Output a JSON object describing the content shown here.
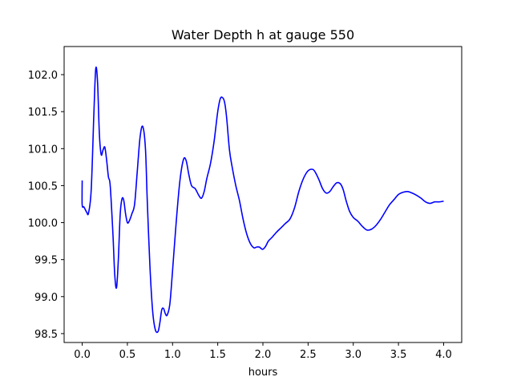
{
  "chart_data": {
    "type": "line",
    "title": "Water Depth h at gauge 550",
    "xlabel": "hours",
    "ylabel": "",
    "xlim": [
      -0.2,
      4.2
    ],
    "ylim": [
      98.38,
      102.38
    ],
    "xticks": [
      0.0,
      0.5,
      1.0,
      1.5,
      2.0,
      2.5,
      3.0,
      3.5,
      4.0
    ],
    "xtick_labels": [
      "0.0",
      "0.5",
      "1.0",
      "1.5",
      "2.0",
      "2.5",
      "3.0",
      "3.5",
      "4.0"
    ],
    "yticks": [
      98.5,
      99.0,
      99.5,
      100.0,
      100.5,
      101.0,
      101.5,
      102.0
    ],
    "ytick_labels": [
      "98.5",
      "99.0",
      "99.5",
      "100.0",
      "100.5",
      "101.0",
      "101.5",
      "102.0"
    ],
    "grid": false,
    "legend": "none",
    "series": [
      {
        "color": "#0000ff",
        "x": [
          0.0,
          0.0,
          0.02,
          0.05,
          0.07,
          0.1,
          0.13,
          0.15,
          0.17,
          0.19,
          0.21,
          0.23,
          0.25,
          0.27,
          0.29,
          0.31,
          0.34,
          0.36,
          0.38,
          0.4,
          0.42,
          0.44,
          0.46,
          0.48,
          0.5,
          0.52,
          0.55,
          0.58,
          0.61,
          0.64,
          0.67,
          0.7,
          0.72,
          0.75,
          0.78,
          0.81,
          0.84,
          0.86,
          0.88,
          0.9,
          0.92,
          0.94,
          0.97,
          1.0,
          1.04,
          1.08,
          1.12,
          1.15,
          1.18,
          1.21,
          1.25,
          1.29,
          1.32,
          1.35,
          1.38,
          1.42,
          1.46,
          1.5,
          1.53,
          1.56,
          1.58,
          1.6,
          1.63,
          1.66,
          1.7,
          1.74,
          1.78,
          1.82,
          1.86,
          1.9,
          1.93,
          1.96,
          1.98,
          2.0,
          2.03,
          2.06,
          2.1,
          2.15,
          2.2,
          2.25,
          2.3,
          2.35,
          2.4,
          2.45,
          2.5,
          2.55,
          2.58,
          2.62,
          2.66,
          2.7,
          2.74,
          2.78,
          2.82,
          2.86,
          2.89,
          2.92,
          2.96,
          3.0,
          3.05,
          3.1,
          3.15,
          3.2,
          3.25,
          3.3,
          3.35,
          3.4,
          3.45,
          3.5,
          3.55,
          3.6,
          3.65,
          3.7,
          3.75,
          3.8,
          3.85,
          3.9,
          3.95,
          4.0
        ],
        "y": [
          100.57,
          100.24,
          100.21,
          100.14,
          100.13,
          100.45,
          101.5,
          102.08,
          101.9,
          101.2,
          100.92,
          100.98,
          101.02,
          100.85,
          100.62,
          100.5,
          99.85,
          99.3,
          99.12,
          99.5,
          100.1,
          100.32,
          100.3,
          100.12,
          100.0,
          100.02,
          100.12,
          100.25,
          100.7,
          101.15,
          101.3,
          101.0,
          100.3,
          99.4,
          98.8,
          98.55,
          98.53,
          98.65,
          98.82,
          98.84,
          98.77,
          98.75,
          98.9,
          99.35,
          100.0,
          100.55,
          100.85,
          100.84,
          100.65,
          100.5,
          100.46,
          100.37,
          100.33,
          100.42,
          100.6,
          100.8,
          101.1,
          101.5,
          101.68,
          101.68,
          101.6,
          101.4,
          100.98,
          100.75,
          100.5,
          100.3,
          100.05,
          99.85,
          99.72,
          99.66,
          99.67,
          99.67,
          99.65,
          99.64,
          99.68,
          99.75,
          99.8,
          99.87,
          99.93,
          99.99,
          100.05,
          100.2,
          100.43,
          100.6,
          100.7,
          100.72,
          100.68,
          100.58,
          100.46,
          100.4,
          100.42,
          100.49,
          100.54,
          100.52,
          100.44,
          100.3,
          100.15,
          100.07,
          100.02,
          99.95,
          99.9,
          99.91,
          99.96,
          100.04,
          100.14,
          100.24,
          100.31,
          100.38,
          100.41,
          100.42,
          100.4,
          100.37,
          100.33,
          100.28,
          100.26,
          100.28,
          100.28,
          100.29
        ]
      }
    ]
  }
}
